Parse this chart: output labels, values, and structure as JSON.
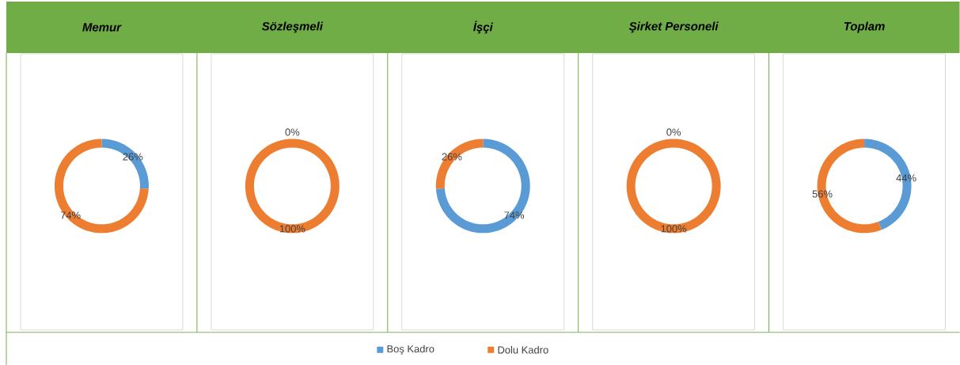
{
  "chart_data": [
    {
      "type": "donut",
      "title": "Memur",
      "values": [
        26,
        74
      ],
      "colors": [
        "#5b9bd5",
        "#ed7d31"
      ],
      "value_labels": [
        "26%",
        "74%"
      ]
    },
    {
      "type": "donut",
      "title": "Sözleşmeli",
      "values": [
        0,
        100
      ],
      "colors": [
        "#5b9bd5",
        "#ed7d31"
      ],
      "value_labels": [
        "0%",
        "100%"
      ]
    },
    {
      "type": "donut",
      "title": "İşçi",
      "categories": [
        "Boş Kadro",
        "Dolu Kadro"
      ],
      "values": [
        74,
        26
      ],
      "colors": [
        "#5b9bd5",
        "#ed7d31"
      ],
      "value_labels": [
        "74%",
        "26%"
      ],
      "legend": "bottom"
    },
    {
      "type": "donut",
      "title": "Şirket Personeli",
      "values": [
        0,
        100
      ],
      "colors": [
        "#5b9bd5",
        "#ed7d31"
      ],
      "value_labels": [
        "0%",
        "100%"
      ]
    },
    {
      "type": "donut",
      "title": "Toplam",
      "values": [
        44,
        56
      ],
      "colors": [
        "#5b9bd5",
        "#ed7d31"
      ],
      "value_labels": [
        "44%",
        "56%"
      ]
    }
  ]
}
